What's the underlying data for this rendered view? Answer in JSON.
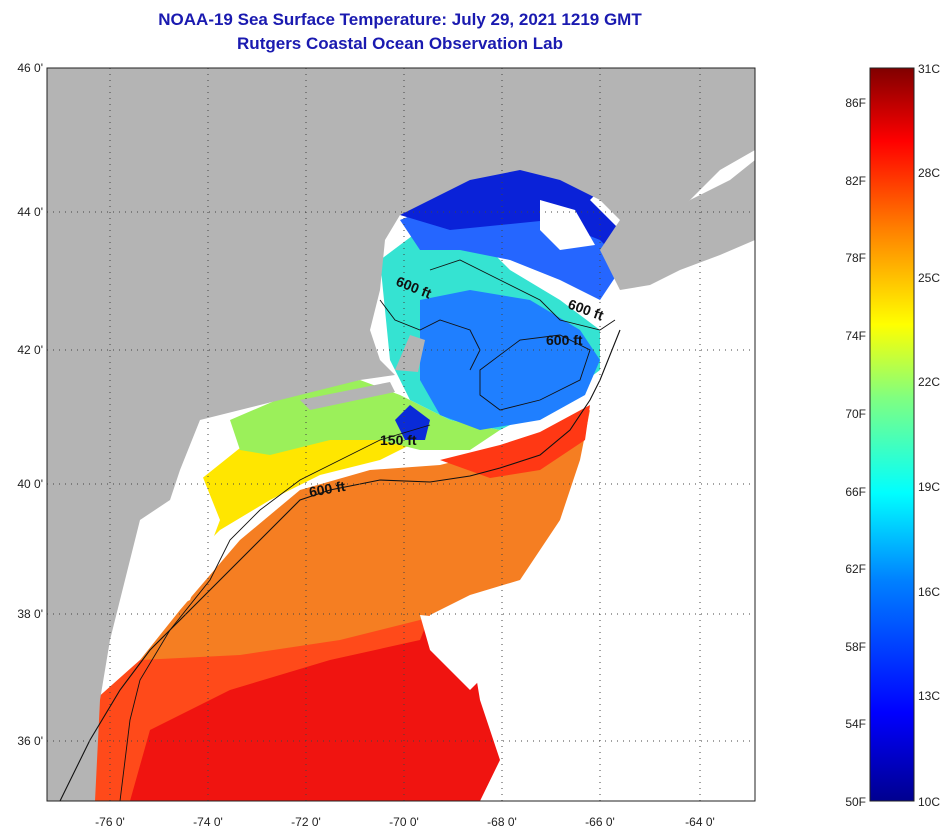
{
  "header": {
    "title": "NOAA-19 Sea Surface Temperature:  July 29, 2021 1219 GMT",
    "subtitle": "Rutgers Coastal Ocean Observation Lab"
  },
  "map": {
    "lat_labels": [
      "46 0'",
      "44 0'",
      "42 0'",
      "40 0'",
      "38 0'",
      "36 0'"
    ],
    "lon_labels": [
      "-76 0'",
      "-74 0'",
      "-72 0'",
      "-70 0'",
      "-68 0'",
      "-66 0'",
      "-64 0'"
    ],
    "contour_labels": [
      "600 ft",
      "600 ft",
      "600 ft",
      "150 ft",
      "600 ft"
    ],
    "colors": {
      "land": "#b4b4b4",
      "cloud": "#ffffff",
      "contour": "#111111"
    }
  },
  "colorbar": {
    "fahrenheit_labels": [
      "86F",
      "82F",
      "78F",
      "74F",
      "70F",
      "66F",
      "62F",
      "58F",
      "54F",
      "50F"
    ],
    "celsius_labels": [
      "31C",
      "28C",
      "25C",
      "22C",
      "19C",
      "16C",
      "13C",
      "10C"
    ],
    "range_celsius": [
      10,
      31
    ],
    "stops": [
      "#00008f",
      "#0000ff",
      "#0080ff",
      "#00ffff",
      "#80ff80",
      "#ffff00",
      "#ff8000",
      "#ff0000",
      "#800000"
    ]
  }
}
